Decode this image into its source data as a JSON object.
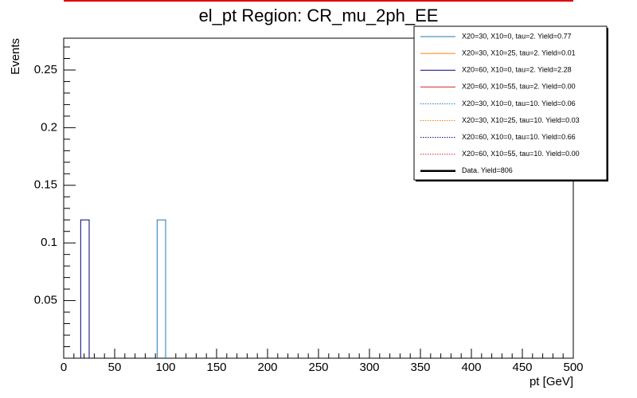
{
  "chart_data": {
    "type": "histogram",
    "title": "el_pt Region: CR_mu_2ph_EE",
    "x_label": "pt [GeV]",
    "y_label": "Events",
    "xlim": [
      0,
      500
    ],
    "xticks": [
      0,
      50,
      100,
      150,
      200,
      250,
      300,
      350,
      400,
      450,
      500
    ],
    "ylim": [
      0,
      0.2776
    ],
    "yticks": [
      0.05,
      0.1,
      0.15,
      0.2,
      0.25
    ],
    "xminor_divisions": 5,
    "yminor_divisions": 5,
    "series": [
      {
        "name": "X20=30, X10=0, tau=2. Yield=0.77",
        "color": "#1f77b4",
        "style": "solid",
        "bins": [
          91.67,
          100
        ],
        "values": [
          0.12
        ]
      },
      {
        "name": "X20=30, X10=25, tau=2. Yield=0.01",
        "color": "#ff7f0e",
        "style": "solid"
      },
      {
        "name": "X20=60, X10=0, tau=2. Yield=2.28",
        "color": "#000080",
        "style": "solid",
        "bins": [
          16.67,
          25
        ],
        "values": [
          0.12
        ]
      },
      {
        "name": "X20=60, X10=55, tau=2. Yield=0.00",
        "color": "#d62728",
        "style": "solid"
      },
      {
        "name": "X20=30, X10=0, tau=10. Yield=0.06",
        "color": "#1f77b4",
        "style": "dotted"
      },
      {
        "name": "X20=30, X10=25, tau=10. Yield=0.03",
        "color": "#ff7f0e",
        "style": "dotted"
      },
      {
        "name": "X20=60, X10=0, tau=10. Yield=0.66",
        "color": "#000080",
        "style": "dotted"
      },
      {
        "name": "X20=60, X10=55, tau=10. Yield=0.00",
        "color": "#d62728",
        "style": "dotted"
      },
      {
        "name": "Data. Yield=806",
        "color": "#000000",
        "style": "thick"
      }
    ]
  }
}
